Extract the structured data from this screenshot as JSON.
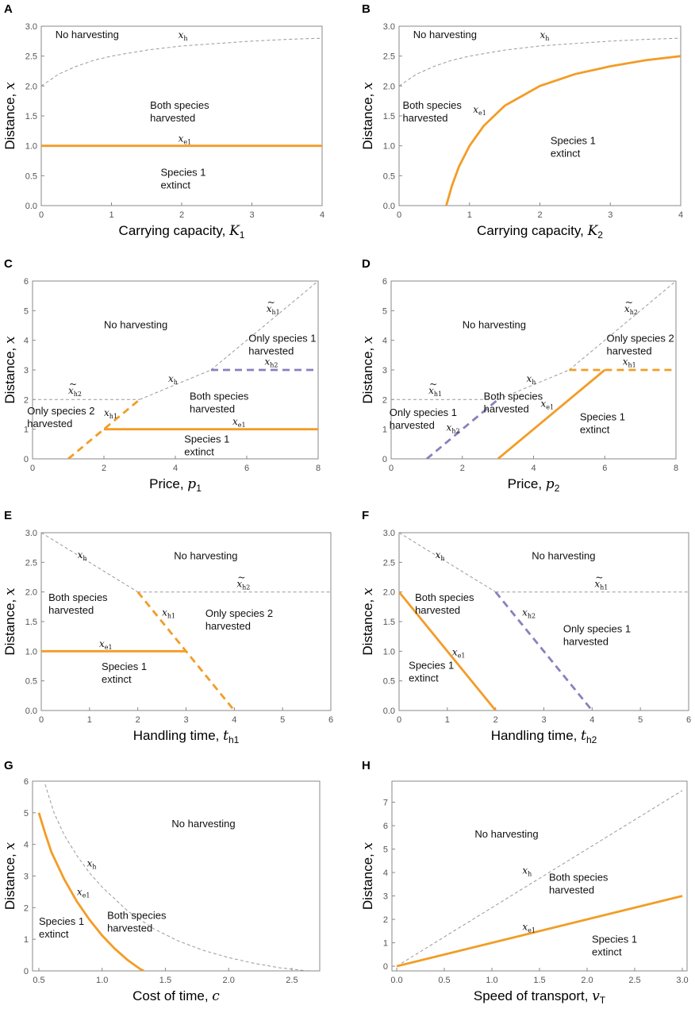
{
  "colors": {
    "orange": "#f39c26",
    "purple": "#8a80bd",
    "gray": "#9a9a9a",
    "frame": "#888888"
  },
  "chart_data": [
    {
      "panel": "A",
      "type": "line",
      "xlabel": "Carrying capacity,",
      "xsym": "K",
      "xsub": "1",
      "ylabel": "Distance,",
      "ysym": "x",
      "xlim": [
        0,
        4
      ],
      "ylim": [
        0,
        3
      ],
      "xticks": [
        "0",
        "1",
        "2",
        "3",
        "4"
      ],
      "yticks": [
        "0.0",
        "0.5",
        "1.0",
        "1.5",
        "2.0",
        "2.5",
        "3.0"
      ],
      "series": [
        {
          "name": "x_h",
          "style": "gray-dashed",
          "x": [
            0,
            0.25,
            0.5,
            0.75,
            1,
            1.5,
            2,
            2.5,
            3,
            3.5,
            4
          ],
          "y": [
            2.0,
            2.2,
            2.33,
            2.43,
            2.5,
            2.6,
            2.67,
            2.71,
            2.75,
            2.78,
            2.8
          ]
        },
        {
          "name": "x_e1",
          "style": "orange-solid",
          "x": [
            0,
            4
          ],
          "y": [
            1,
            1
          ]
        }
      ],
      "labels": [
        {
          "lines": [
            "No harvesting"
          ],
          "x": 0.2,
          "y": 2.8
        },
        {
          "lines": [
            "Both species",
            "harvested"
          ],
          "x": 1.55,
          "y": 1.62
        },
        {
          "lines": [
            "Species 1",
            "extinct"
          ],
          "x": 1.7,
          "y": 0.5
        }
      ],
      "curve_labels": [
        {
          "sym": "x",
          "sub": "h",
          "x": 1.95,
          "y": 2.8
        },
        {
          "sym": "x",
          "sub": "e1",
          "x": 1.95,
          "y": 1.07
        }
      ]
    },
    {
      "panel": "B",
      "type": "line",
      "xlabel": "Carrying capacity,",
      "xsym": "K",
      "xsub": "2",
      "ylabel": "Distance,",
      "ysym": "x",
      "xlim": [
        0,
        4
      ],
      "ylim": [
        0,
        3
      ],
      "xticks": [
        "0",
        "1",
        "2",
        "3",
        "4"
      ],
      "yticks": [
        "0.0",
        "0.5",
        "1.0",
        "1.5",
        "2.0",
        "2.5",
        "3.0"
      ],
      "series": [
        {
          "name": "x_h",
          "style": "gray-dashed",
          "x": [
            0,
            0.25,
            0.5,
            0.75,
            1,
            1.5,
            2,
            2.5,
            3,
            3.5,
            4
          ],
          "y": [
            2.0,
            2.2,
            2.33,
            2.43,
            2.5,
            2.6,
            2.67,
            2.71,
            2.75,
            2.78,
            2.8
          ]
        },
        {
          "name": "x_e1",
          "style": "orange-solid",
          "x": [
            0.67,
            0.75,
            0.85,
            1.0,
            1.2,
            1.5,
            2.0,
            2.5,
            3.0,
            3.5,
            4.0
          ],
          "y": [
            0,
            0.33,
            0.65,
            1.0,
            1.33,
            1.67,
            2.0,
            2.2,
            2.33,
            2.43,
            2.5
          ]
        }
      ],
      "labels": [
        {
          "lines": [
            "No harvesting"
          ],
          "x": 0.2,
          "y": 2.8
        },
        {
          "lines": [
            "Both species",
            "harvested"
          ],
          "x": 0.05,
          "y": 1.62
        },
        {
          "lines": [
            "Species 1",
            "extinct"
          ],
          "x": 2.15,
          "y": 1.03
        }
      ],
      "curve_labels": [
        {
          "sym": "x",
          "sub": "h",
          "x": 2.0,
          "y": 2.8
        },
        {
          "sym": "x",
          "sub": "e1",
          "x": 1.05,
          "y": 1.55
        }
      ]
    },
    {
      "panel": "C",
      "type": "line",
      "xlabel": "Price,",
      "xsym": "p",
      "xsub": "1",
      "ylabel": "Distance,",
      "ysym": "x",
      "xlim": [
        0,
        8
      ],
      "ylim": [
        0,
        6
      ],
      "xticks": [
        "0",
        "2",
        "4",
        "6",
        "8"
      ],
      "yticks": [
        "0",
        "1",
        "2",
        "3",
        "4",
        "5",
        "6"
      ],
      "series": [
        {
          "name": "x~_h2",
          "style": "gray-dashed",
          "x": [
            0,
            3
          ],
          "y": [
            2,
            2
          ]
        },
        {
          "name": "x_h",
          "style": "gray-dashed",
          "x": [
            3,
            5
          ],
          "y": [
            2,
            3
          ]
        },
        {
          "name": "x~_h1",
          "style": "gray-dashed",
          "x": [
            5,
            8
          ],
          "y": [
            3,
            6
          ]
        },
        {
          "name": "x_h2",
          "style": "purple-dashed",
          "x": [
            5,
            8
          ],
          "y": [
            3,
            3
          ]
        },
        {
          "name": "x_h1",
          "style": "orange-dashed",
          "x": [
            1,
            3
          ],
          "y": [
            0,
            2
          ]
        },
        {
          "name": "x_e1",
          "style": "orange-solid",
          "x": [
            2,
            8
          ],
          "y": [
            1,
            1
          ]
        }
      ],
      "labels": [
        {
          "lines": [
            "No harvesting"
          ],
          "x": 2.0,
          "y": 4.4
        },
        {
          "lines": [
            "Only species 1",
            "harvested"
          ],
          "x": 6.05,
          "y": 3.95
        },
        {
          "lines": [
            "Both species",
            "harvested"
          ],
          "x": 4.4,
          "y": 2.0
        },
        {
          "lines": [
            "Only species 2",
            "harvested"
          ],
          "x": -0.15,
          "y": 1.5
        },
        {
          "lines": [
            "Species 1",
            "extinct"
          ],
          "x": 4.25,
          "y": 0.55
        }
      ],
      "curve_labels": [
        {
          "sym": "x",
          "sub": "h1",
          "tilde": true,
          "x": 6.55,
          "y": 4.95
        },
        {
          "sym": "x",
          "sub": "h2",
          "x": 6.5,
          "y": 3.17
        },
        {
          "sym": "x",
          "sub": "h",
          "x": 3.8,
          "y": 2.6
        },
        {
          "sym": "x",
          "sub": "h2",
          "tilde": true,
          "x": 1.0,
          "y": 2.2
        },
        {
          "sym": "x",
          "sub": "h1",
          "x": 2.0,
          "y": 1.45
        },
        {
          "sym": "x",
          "sub": "e1",
          "x": 5.6,
          "y": 1.15
        }
      ]
    },
    {
      "panel": "D",
      "type": "line",
      "xlabel": "Price,",
      "xsym": "p",
      "xsub": "2",
      "ylabel": "Distance,",
      "ysym": "x",
      "xlim": [
        0,
        8
      ],
      "ylim": [
        0,
        6
      ],
      "xticks": [
        "0",
        "2",
        "4",
        "6",
        "8"
      ],
      "yticks": [
        "0",
        "1",
        "2",
        "3",
        "4",
        "5",
        "6"
      ],
      "series": [
        {
          "name": "x~_h1",
          "style": "gray-dashed",
          "x": [
            0,
            3
          ],
          "y": [
            2,
            2
          ]
        },
        {
          "name": "x_h",
          "style": "gray-dashed",
          "x": [
            3,
            5
          ],
          "y": [
            2,
            3
          ]
        },
        {
          "name": "x~_h2",
          "style": "gray-dashed",
          "x": [
            5,
            8
          ],
          "y": [
            3,
            6
          ]
        },
        {
          "name": "x_h1",
          "style": "orange-dashed",
          "x": [
            5,
            8
          ],
          "y": [
            3,
            3
          ]
        },
        {
          "name": "x_h2",
          "style": "purple-dashed",
          "x": [
            1,
            3
          ],
          "y": [
            0,
            2
          ]
        },
        {
          "name": "x_e1",
          "style": "orange-solid",
          "x": [
            3,
            6
          ],
          "y": [
            0,
            3
          ]
        }
      ],
      "labels": [
        {
          "lines": [
            "No harvesting"
          ],
          "x": 2.0,
          "y": 4.4
        },
        {
          "lines": [
            "Only species 2",
            "harvested"
          ],
          "x": 6.05,
          "y": 3.95
        },
        {
          "lines": [
            "Both species",
            "harvested"
          ],
          "x": 2.6,
          "y": 2.0
        },
        {
          "lines": [
            "Only species 1",
            "harvested"
          ],
          "x": -0.05,
          "y": 1.45
        },
        {
          "lines": [
            "Species 1",
            "extinct"
          ],
          "x": 5.3,
          "y": 1.3
        }
      ],
      "curve_labels": [
        {
          "sym": "x",
          "sub": "h2",
          "tilde": true,
          "x": 6.55,
          "y": 4.95
        },
        {
          "sym": "x",
          "sub": "h1",
          "x": 6.5,
          "y": 3.17
        },
        {
          "sym": "x",
          "sub": "h",
          "x": 3.8,
          "y": 2.6
        },
        {
          "sym": "x",
          "sub": "h1",
          "tilde": true,
          "x": 1.05,
          "y": 2.2
        },
        {
          "sym": "x",
          "sub": "h2",
          "x": 1.55,
          "y": 0.95
        },
        {
          "sym": "x",
          "sub": "e1",
          "x": 4.2,
          "y": 1.75
        }
      ]
    },
    {
      "panel": "E",
      "type": "line",
      "xlabel": "Handling time,",
      "xsym": "t",
      "xsub": "h1",
      "ylabel": "Distance,",
      "ysym": "x",
      "xlim": [
        0,
        6
      ],
      "ylim": [
        0,
        3
      ],
      "xticks": [
        "0",
        "1",
        "2",
        "3",
        "4",
        "5",
        "6"
      ],
      "yticks": [
        "0.0",
        "0.5",
        "1.0",
        "1.5",
        "2.0",
        "2.5",
        "3.0"
      ],
      "series": [
        {
          "name": "x_h",
          "style": "gray-dashed",
          "x": [
            0,
            2
          ],
          "y": [
            3,
            2
          ]
        },
        {
          "name": "x~_h2",
          "style": "gray-dashed",
          "x": [
            2,
            6
          ],
          "y": [
            2,
            2
          ]
        },
        {
          "name": "x_h1",
          "style": "orange-dashed",
          "x": [
            2,
            4
          ],
          "y": [
            2,
            0
          ]
        },
        {
          "name": "x_e1",
          "style": "orange-solid",
          "x": [
            0,
            3
          ],
          "y": [
            1,
            1
          ]
        }
      ],
      "labels": [
        {
          "lines": [
            "No harvesting"
          ],
          "x": 2.75,
          "y": 2.55
        },
        {
          "lines": [
            "Both species",
            "harvested"
          ],
          "x": 0.15,
          "y": 1.85
        },
        {
          "lines": [
            "Only species 2",
            "harvested"
          ],
          "x": 3.4,
          "y": 1.58
        },
        {
          "lines": [
            "Species 1",
            "extinct"
          ],
          "x": 1.25,
          "y": 0.68
        }
      ],
      "curve_labels": [
        {
          "sym": "x",
          "sub": "h",
          "x": 0.75,
          "y": 2.57
        },
        {
          "sym": "x",
          "sub": "h2",
          "tilde": true,
          "x": 4.05,
          "y": 2.08
        },
        {
          "sym": "x",
          "sub": "h1",
          "x": 2.5,
          "y": 1.6
        },
        {
          "sym": "x",
          "sub": "e1",
          "x": 1.2,
          "y": 1.07
        }
      ]
    },
    {
      "panel": "F",
      "type": "line",
      "xlabel": "Handling time,",
      "xsym": "t",
      "xsub": "h2",
      "ylabel": "Distance,",
      "ysym": "x",
      "xlim": [
        0,
        6
      ],
      "ylim": [
        0,
        3
      ],
      "xticks": [
        "0",
        "1",
        "2",
        "3",
        "4",
        "5",
        "6"
      ],
      "yticks": [
        "0.0",
        "0.5",
        "1.0",
        "1.5",
        "2.0",
        "2.5",
        "3.0"
      ],
      "series": [
        {
          "name": "x_h",
          "style": "gray-dashed",
          "x": [
            0,
            2
          ],
          "y": [
            3,
            2
          ]
        },
        {
          "name": "x~_h1",
          "style": "gray-dashed",
          "x": [
            2,
            6
          ],
          "y": [
            2,
            2
          ]
        },
        {
          "name": "x_h2",
          "style": "purple-dashed",
          "x": [
            2,
            4
          ],
          "y": [
            2,
            0
          ]
        },
        {
          "name": "x_e1",
          "style": "orange-solid",
          "x": [
            0,
            2
          ],
          "y": [
            2,
            0
          ]
        }
      ],
      "labels": [
        {
          "lines": [
            "No harvesting"
          ],
          "x": 2.75,
          "y": 2.55
        },
        {
          "lines": [
            "Both species",
            "harvested"
          ],
          "x": 0.33,
          "y": 1.85
        },
        {
          "lines": [
            "Only species 1",
            "harvested"
          ],
          "x": 3.4,
          "y": 1.32
        },
        {
          "lines": [
            "Species 1",
            "extinct"
          ],
          "x": 0.2,
          "y": 0.7
        }
      ],
      "curve_labels": [
        {
          "sym": "x",
          "sub": "h",
          "x": 0.75,
          "y": 2.57
        },
        {
          "sym": "x",
          "sub": "h1",
          "tilde": true,
          "x": 4.05,
          "y": 2.08
        },
        {
          "sym": "x",
          "sub": "h2",
          "x": 2.55,
          "y": 1.6
        },
        {
          "sym": "x",
          "sub": "e1",
          "x": 1.1,
          "y": 0.93
        }
      ]
    },
    {
      "panel": "G",
      "type": "line",
      "xlabel": "Cost of time,",
      "xsym": "c",
      "xsub": "",
      "ylabel": "Distance,",
      "ysym": "x",
      "xlim": [
        0.45,
        2.72
      ],
      "ylim": [
        0,
        6
      ],
      "xticks": [
        "0.5",
        "1.0",
        "1.5",
        "2.0",
        "2.5"
      ],
      "xtick_values": [
        0.5,
        1.0,
        1.5,
        2.0,
        2.5
      ],
      "yticks": [
        "0",
        "1",
        "2",
        "3",
        "4",
        "5",
        "6"
      ],
      "series": [
        {
          "name": "x_h",
          "style": "gray-dashed",
          "x": [
            0.55,
            0.62,
            0.7,
            0.8,
            0.9,
            1.0,
            1.2,
            1.4,
            1.6,
            1.8,
            2.0,
            2.2,
            2.4,
            2.6,
            2.65
          ],
          "y": [
            5.9,
            5.0,
            4.3,
            3.65,
            3.1,
            2.65,
            1.9,
            1.35,
            0.95,
            0.65,
            0.42,
            0.24,
            0.1,
            0.01,
            0.0
          ]
        },
        {
          "name": "x_e1",
          "style": "orange-solid",
          "x": [
            0.5,
            0.55,
            0.6,
            0.7,
            0.8,
            0.9,
            1.0,
            1.1,
            1.2,
            1.3,
            1.33
          ],
          "y": [
            5.0,
            4.35,
            3.75,
            2.9,
            2.2,
            1.62,
            1.12,
            0.7,
            0.35,
            0.06,
            0.0
          ]
        }
      ],
      "labels": [
        {
          "lines": [
            "No harvesting"
          ],
          "x": 1.55,
          "y": 4.55
        },
        {
          "lines": [
            "Both species",
            "harvested"
          ],
          "x": 1.04,
          "y": 1.65
        },
        {
          "lines": [
            "Species 1",
            "extinct"
          ],
          "x": 0.5,
          "y": 1.45
        }
      ],
      "curve_labels": [
        {
          "sym": "x",
          "sub": "h",
          "x": 0.88,
          "y": 3.3
        },
        {
          "sym": "x",
          "sub": "e1",
          "x": 0.8,
          "y": 2.4
        }
      ]
    },
    {
      "panel": "H",
      "type": "line",
      "xlabel": "Speed of transport,",
      "xsym": "v",
      "xsub": "T",
      "ylabel": "Distance,",
      "ysym": "x",
      "xlim": [
        -0.05,
        3.05
      ],
      "ylim": [
        -0.2,
        7.9
      ],
      "xticks": [
        "0.0",
        "0.5",
        "1.0",
        "1.5",
        "2.0",
        "2.5",
        "3.0"
      ],
      "xtick_values": [
        0,
        0.5,
        1.0,
        1.5,
        2.0,
        2.5,
        3.0
      ],
      "yticks": [
        "0",
        "1",
        "2",
        "3",
        "4",
        "5",
        "6",
        "7"
      ],
      "series": [
        {
          "name": "x_h",
          "style": "gray-dashed",
          "x": [
            0,
            3
          ],
          "y": [
            0,
            7.5
          ]
        },
        {
          "name": "x_e1",
          "style": "orange-solid",
          "x": [
            0,
            3
          ],
          "y": [
            0,
            3
          ]
        }
      ],
      "labels": [
        {
          "lines": [
            "No harvesting"
          ],
          "x": 0.82,
          "y": 5.5
        },
        {
          "lines": [
            "Both species",
            "harvested"
          ],
          "x": 1.6,
          "y": 3.65
        },
        {
          "lines": [
            "Species 1",
            "extinct"
          ],
          "x": 2.05,
          "y": 1.0
        }
      ],
      "curve_labels": [
        {
          "sym": "x",
          "sub": "h",
          "x": 1.32,
          "y": 3.95
        },
        {
          "sym": "x",
          "sub": "e1",
          "x": 1.32,
          "y": 1.55
        }
      ]
    }
  ]
}
